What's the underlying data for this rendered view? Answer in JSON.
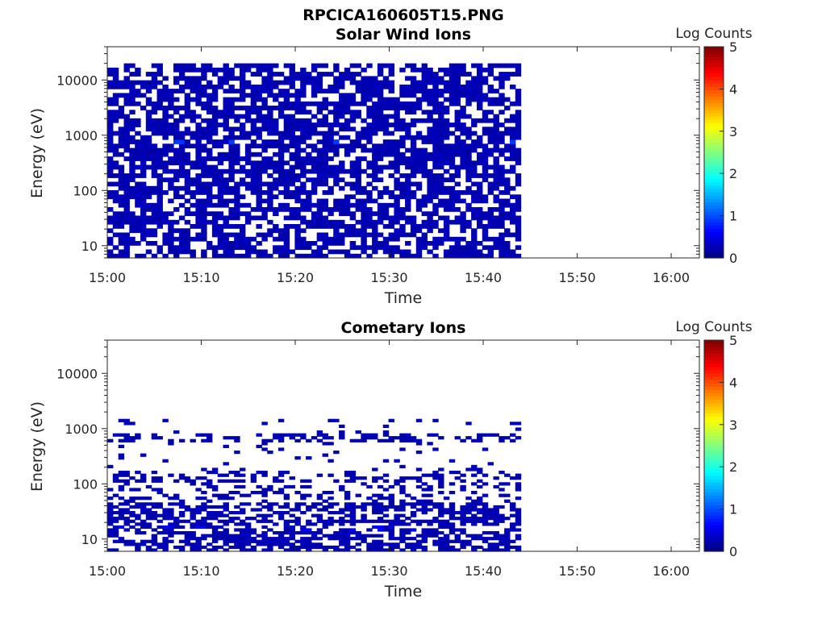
{
  "figure": {
    "title": "RPCICA160605T15.PNG"
  },
  "colorbar": {
    "label": "Log Counts",
    "ticks": [
      "0",
      "1",
      "2",
      "3",
      "4",
      "5"
    ],
    "range": [
      0,
      5
    ],
    "colormap": "jet"
  },
  "chart_data": [
    {
      "type": "heatmap",
      "title": "Solar Wind Ions",
      "xlabel": "Time",
      "ylabel": "Energy (eV)",
      "x_ticks": [
        "15:00",
        "15:10",
        "15:20",
        "15:30",
        "15:40",
        "15:50",
        "16:00"
      ],
      "x_range": [
        "15:00",
        "16:03"
      ],
      "y_ticks": [
        "10",
        "100",
        "1000",
        "10000"
      ],
      "y_scale": "log",
      "y_range": [
        6,
        40000
      ],
      "data_end_time": "15:44",
      "data_energy_range_eV": [
        6,
        20000
      ],
      "typical_value": 0.2,
      "peak": {
        "energy_eV": 800,
        "value": 0.9
      }
    },
    {
      "type": "heatmap",
      "title": "Cometary Ions",
      "xlabel": "Time",
      "ylabel": "Energy (eV)",
      "x_ticks": [
        "15:00",
        "15:10",
        "15:20",
        "15:30",
        "15:40",
        "15:50",
        "16:00"
      ],
      "x_range": [
        "15:00",
        "16:03"
      ],
      "y_ticks": [
        "10",
        "100",
        "1000",
        "10000"
      ],
      "y_scale": "log",
      "y_range": [
        6,
        40000
      ],
      "data_end_time": "15:44",
      "data_energy_range_eV": [
        6,
        1500
      ],
      "typical_value": 0.2,
      "peak": {
        "energy_eV": 15,
        "value": 0.6
      }
    }
  ]
}
